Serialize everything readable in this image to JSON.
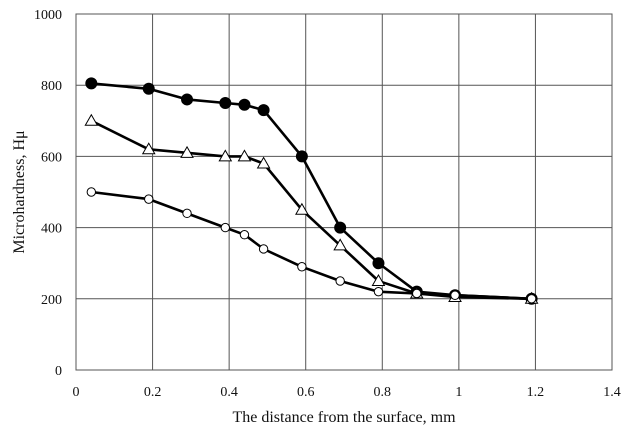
{
  "chart_data": {
    "type": "line",
    "title": "",
    "xlabel": "The distance from the surface, mm",
    "ylabel": "Microhardness, Hμ",
    "xlim": [
      0,
      1.4
    ],
    "ylim": [
      0,
      1000
    ],
    "xticks": [
      0,
      0.2,
      0.4,
      0.6,
      0.8,
      1,
      1.2,
      1.4
    ],
    "yticks": [
      0,
      200,
      400,
      600,
      800,
      1000
    ],
    "grid": true,
    "legend": "none",
    "series": [
      {
        "marker": "filled-circle",
        "color": "#000000",
        "x": [
          0.04,
          0.19,
          0.29,
          0.39,
          0.44,
          0.49,
          0.59,
          0.69,
          0.79,
          0.89,
          0.99,
          1.19
        ],
        "y": [
          805,
          790,
          760,
          750,
          745,
          730,
          600,
          400,
          300,
          220,
          210,
          200
        ]
      },
      {
        "marker": "open-triangle",
        "color": "#000000",
        "x": [
          0.04,
          0.19,
          0.29,
          0.39,
          0.44,
          0.49,
          0.59,
          0.69,
          0.79,
          0.89,
          0.99,
          1.19
        ],
        "y": [
          700,
          620,
          610,
          600,
          600,
          580,
          450,
          350,
          250,
          215,
          205,
          200
        ]
      },
      {
        "marker": "open-circle",
        "color": "#000000",
        "x": [
          0.04,
          0.19,
          0.29,
          0.39,
          0.44,
          0.49,
          0.59,
          0.69,
          0.79,
          0.89,
          0.99,
          1.19
        ],
        "y": [
          500,
          480,
          440,
          400,
          380,
          340,
          290,
          250,
          220,
          215,
          210,
          200
        ]
      }
    ]
  }
}
